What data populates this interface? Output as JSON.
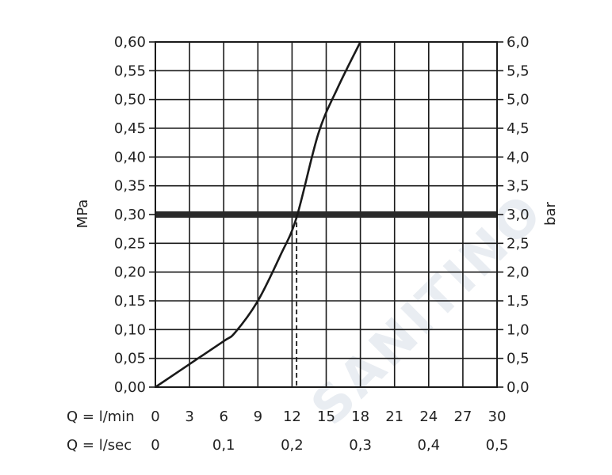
{
  "watermark": "SANITINO",
  "chart_data": {
    "type": "line",
    "ylabel_left": "MPa",
    "ylabel_right": "bar",
    "x_flow_label": "Q = l/min",
    "x_sec_label": "Q = l/sec",
    "xlim": [
      0,
      30
    ],
    "ylim": [
      0,
      0.6
    ],
    "x_ticks": [
      "0",
      "3",
      "6",
      "9",
      "12",
      "15",
      "18",
      "21",
      "24",
      "27",
      "30"
    ],
    "x_sec_ticks": [
      {
        "q": 0,
        "label": "0"
      },
      {
        "q": 6,
        "label": "0,1"
      },
      {
        "q": 12,
        "label": "0,2"
      },
      {
        "q": 18,
        "label": "0,3"
      },
      {
        "q": 24,
        "label": "0,4"
      },
      {
        "q": 30,
        "label": "0,5"
      }
    ],
    "y_ticks_left": [
      "0,00",
      "0,05",
      "0,10",
      "0,15",
      "0,20",
      "0,25",
      "0,30",
      "0,35",
      "0,40",
      "0,45",
      "0,50",
      "0,55",
      "0,60"
    ],
    "y_ticks_right": [
      "0,0",
      "0,5",
      "1,0",
      "1,5",
      "2,0",
      "2,5",
      "3,0",
      "3,5",
      "4,0",
      "4,5",
      "5,0",
      "5,5",
      "6,0"
    ],
    "series": [
      {
        "x": [
          0,
          3,
          6,
          7,
          9,
          11,
          12.4,
          14.3,
          16,
          18
        ],
        "y": [
          0,
          0.04,
          0.08,
          0.095,
          0.15,
          0.23,
          0.295,
          0.44,
          0.52,
          0.6
        ]
      }
    ],
    "reference_line_y": 0.3,
    "marker_x": 12.4,
    "grid": true
  }
}
